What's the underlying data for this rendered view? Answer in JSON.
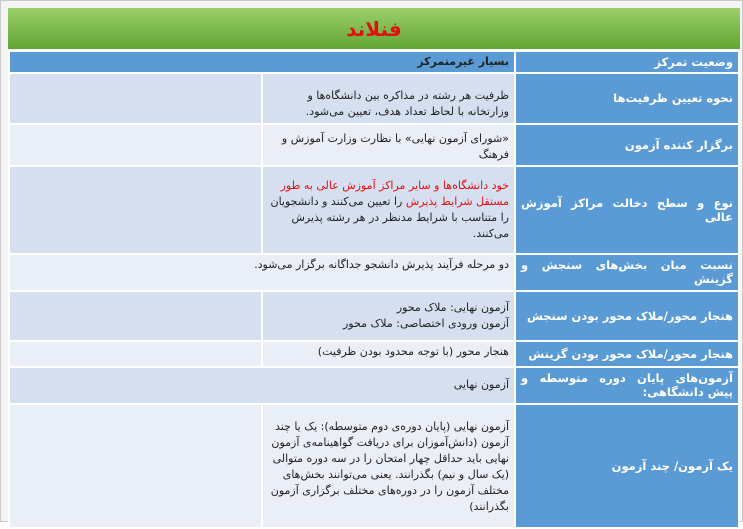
{
  "title": "فنلاند",
  "header": {
    "label": "وضعیت تمرکز",
    "value": "بسیار غیرمتمرکز"
  },
  "rows": [
    {
      "label": "نحوه تعیین ظرفیت‌ها",
      "text": "ظرفیت هر رشته در مذاکره بین دانشگاه‌ها و وزارتخانه با لحاظ تعداد هدف، تعیین می‌شود."
    },
    {
      "label": "برگزار کننده آزمون",
      "text": "«شورای آزمون نهایی» با نظارت وزارت آموزش و فرهنگ"
    },
    {
      "label": "نوع و سطح دخالت مراکز  آموزش عالی",
      "text_red": "خود دانشگاه‌ها و سایر مراکز آموزش عالی به طور مستقل شرایط پذیرش",
      "text": " را تعیین می‌کنند و دانشجویان را متناسب با شرایط مدنظر در هر رشته پذیرش می‌کنند."
    },
    {
      "label": "نسبت میان بخش‌های سنجش و گزینش",
      "text": "دو مرحله فرآیند پذیرش دانشجو جداگانه برگزار می‌شود."
    },
    {
      "label": "هنجار محور/ملاک محور بودن سنجش",
      "line1": "آزمون نهایی: ملاک محور",
      "line2": "آزمون ورودی اختصاصی: ملاک محور"
    },
    {
      "label": "هنجار محور/ملاک محور بودن گزینش",
      "text": "هنجار محور (با توجه محدود بودن ظرفیت)"
    },
    {
      "label": "آزمون‌های پایان دوره متوسطه و پیش دانشگاهی:",
      "text": "آزمون نهایی"
    },
    {
      "label": "یک آزمون/ چند آزمون",
      "text": "آزمون نهایی (پایان دوره‌ی دوم متوسطه): یک یا چند آزمون (دانش‌آموزان برای دریافت گواهینامه‌ی آزمون نهایی باید حداقل چهار امتحان را در سه دوره متوالی (یک سال و نیم) بگذرانند. یعنی می‌توانند بخش‌های مختلف آزمون را در دوره‌های مختلف برگزاری آزمون بگذرانند)"
    }
  ]
}
